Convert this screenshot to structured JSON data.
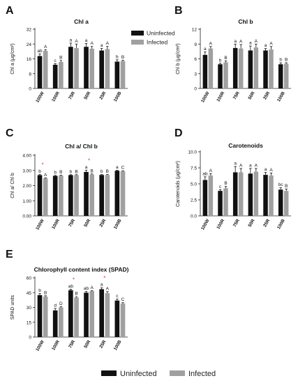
{
  "colors": {
    "uninfected": "#111111",
    "infected": "#a0a0a0",
    "sig": "#e8353b",
    "axis": "#222222"
  },
  "legend_top": {
    "uninfected": "Uninfected",
    "infected": "Infected"
  },
  "legend_bottom": {
    "uninfected": "Uninfected",
    "infected": "Infected"
  },
  "chart_data": [
    {
      "panel": "A",
      "type": "bar",
      "title": "Chl a",
      "ylabel": "Chl a (μg/cm²)",
      "ylim": [
        0,
        32
      ],
      "yticks": [
        "0",
        "8",
        "16",
        "24",
        "32"
      ],
      "ytick_values": [
        0,
        8,
        16,
        24,
        32
      ],
      "categories": [
        "100W",
        "100R",
        "75R",
        "50R",
        "25R",
        "100B"
      ],
      "series": [
        {
          "name": "Uninfected",
          "values": [
            17.5,
            12.8,
            22.5,
            22.5,
            20.5,
            14.5
          ],
          "errors": [
            1.2,
            0.6,
            2.0,
            1.8,
            1.2,
            1.0
          ],
          "letters": [
            "ab",
            "c",
            "a",
            "a",
            "a",
            "b"
          ]
        },
        {
          "name": "Infected",
          "values": [
            20.3,
            14.3,
            21.8,
            21.5,
            21.3,
            14.8
          ],
          "errors": [
            0.6,
            0.8,
            2.2,
            1.2,
            1.4,
            0.5
          ],
          "letters": [
            "A",
            "B",
            "A",
            "A",
            "A",
            "B"
          ]
        }
      ],
      "significance": []
    },
    {
      "panel": "B",
      "type": "bar",
      "title": "Chl b",
      "ylabel": "Chl b (μg/cm²)",
      "ylim": [
        0,
        12
      ],
      "yticks": [
        "0",
        "3",
        "6",
        "9",
        "12"
      ],
      "ytick_values": [
        0,
        3,
        6,
        9,
        12
      ],
      "categories": [
        "100W",
        "100R",
        "75R",
        "50R",
        "25R",
        "100B"
      ],
      "series": [
        {
          "name": "Uninfected",
          "values": [
            6.8,
            4.9,
            8.2,
            7.7,
            7.7,
            4.9
          ],
          "errors": [
            0.6,
            0.2,
            0.8,
            0.9,
            0.4,
            0.3
          ],
          "letters": [
            "a",
            "b",
            "a",
            "a",
            "a",
            "b"
          ]
        },
        {
          "name": "Infected",
          "values": [
            8.1,
            5.3,
            8.1,
            8.3,
            7.9,
            5.0
          ],
          "errors": [
            0.4,
            0.3,
            0.8,
            0.7,
            0.6,
            0.2
          ],
          "letters": [
            "A",
            "B",
            "A",
            "A",
            "A",
            "B"
          ]
        }
      ],
      "significance": []
    },
    {
      "panel": "C",
      "type": "bar",
      "title": "Chl a/ Chl b",
      "ylabel": "Chl a/ Chl b",
      "ylim": [
        0,
        4
      ],
      "yticks": [
        "0.00",
        "1.00",
        "2.00",
        "3.00",
        "4.00"
      ],
      "ytick_values": [
        0,
        1,
        2,
        3,
        4
      ],
      "categories": [
        "100W",
        "100R",
        "75R",
        "50R",
        "25R",
        "100B"
      ],
      "series": [
        {
          "name": "Uninfected",
          "values": [
            2.69,
            2.64,
            2.69,
            2.9,
            2.7,
            2.98
          ],
          "errors": [
            0.04,
            0.03,
            0.03,
            0.12,
            0.03,
            0.03
          ],
          "letters": [
            "b",
            "b",
            "b",
            "a",
            "b",
            "a"
          ]
        },
        {
          "name": "Infected",
          "values": [
            2.48,
            2.66,
            2.69,
            2.73,
            2.7,
            2.95
          ],
          "errors": [
            0.03,
            0.03,
            0.03,
            0.04,
            0.03,
            0.03
          ],
          "letters": [
            "A",
            "B",
            "B",
            "B",
            "B",
            "C"
          ]
        }
      ],
      "significance": [
        0,
        3
      ]
    },
    {
      "panel": "D",
      "type": "bar",
      "title": "Carotenoids",
      "ylabel": "Carotenoids (μg/cm²)",
      "ylim": [
        0,
        10
      ],
      "yticks": [
        "0.0",
        "2.5",
        "5.0",
        "7.5",
        "10.0"
      ],
      "ytick_values": [
        0,
        2.5,
        5,
        7.5,
        10
      ],
      "categories": [
        "100W",
        "100R",
        "75R",
        "50R",
        "25R",
        "100B"
      ],
      "series": [
        {
          "name": "Uninfected",
          "values": [
            5.6,
            3.9,
            6.8,
            6.6,
            6.4,
            4.1
          ],
          "errors": [
            0.5,
            0.2,
            0.9,
            0.8,
            0.4,
            0.3
          ],
          "letters": [
            "ab",
            "c",
            "a",
            "a",
            "a",
            "bc"
          ]
        },
        {
          "name": "Infected",
          "values": [
            6.3,
            4.3,
            6.8,
            6.9,
            6.3,
            3.9
          ],
          "errors": [
            0.3,
            0.3,
            0.6,
            0.5,
            0.4,
            0.3
          ],
          "letters": [
            "A",
            "B",
            "A",
            "A",
            "A",
            "B"
          ]
        }
      ],
      "significance": []
    },
    {
      "panel": "E",
      "type": "bar",
      "title": "Chlorophyll content index (SPAD)",
      "ylabel": "SPAD units",
      "ylim": [
        0,
        60
      ],
      "yticks": [
        "0",
        "15",
        "30",
        "45",
        "60"
      ],
      "ytick_values": [
        0,
        15,
        30,
        45,
        60
      ],
      "categories": [
        "100W",
        "100R",
        "75R",
        "50R",
        "25R",
        "100B"
      ],
      "series": [
        {
          "name": "Uninfected",
          "values": [
            42.5,
            27.0,
            47.5,
            45.0,
            48.5,
            37.0
          ],
          "errors": [
            1.5,
            2.0,
            1.0,
            1.2,
            1.5,
            1.5
          ],
          "letters": [
            "b",
            "d",
            "ab",
            "ab",
            "a",
            "c"
          ]
        },
        {
          "name": "Infected",
          "values": [
            41.0,
            30.0,
            40.0,
            46.5,
            44.5,
            34.0
          ],
          "errors": [
            0.8,
            0.8,
            0.8,
            0.5,
            1.5,
            0.8
          ],
          "letters": [
            "B",
            "D",
            "B",
            "A",
            "A",
            "C"
          ]
        }
      ],
      "significance": [
        2,
        4
      ]
    }
  ]
}
